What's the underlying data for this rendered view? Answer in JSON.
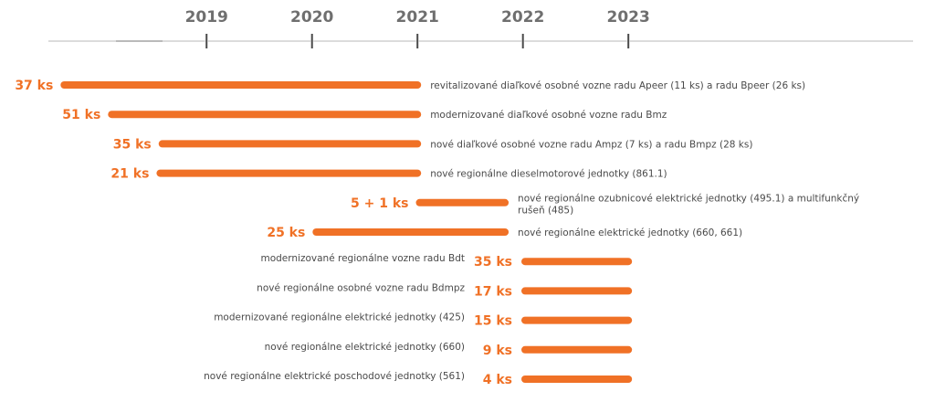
{
  "chart_data": {
    "type": "timeline",
    "accent_color": "#f07126",
    "axis_color": "#c8c8c8",
    "tick_color": "#4a4a4a",
    "years": [
      "2019",
      "2020",
      "2021",
      "2022",
      "2023"
    ],
    "xlim": [
      2017.5,
      2025.7
    ],
    "items": [
      {
        "count": "37 ks",
        "start": 2017.65,
        "end": 2021.0,
        "label_side": "right",
        "label": [
          "revitalizované diaľkové osobné vozne radu Apeer (11 ks) a radu Bpeer (26 ks)"
        ]
      },
      {
        "count": "51 ks",
        "start": 2018.1,
        "end": 2021.0,
        "label_side": "right",
        "label": [
          "modernizované diaľkové osobné vozne radu Bmz"
        ]
      },
      {
        "count": "35 ks",
        "start": 2018.58,
        "end": 2021.0,
        "label_side": "right",
        "label": [
          "nové diaľkové osobné vozne radu Ampz (7 ks) a radu Bmpz (28 ks)"
        ]
      },
      {
        "count": "21 ks",
        "start": 2018.56,
        "end": 2021.0,
        "label_side": "right",
        "label": [
          "nové regionálne dieselmotorové jednotky (861.1)"
        ]
      },
      {
        "count": "5 + 1 ks",
        "start": 2021.02,
        "end": 2021.83,
        "label_side": "right",
        "label": [
          "nové regionálne ozubnicové elektrické jednotky (495.1) a multifunkčný",
          "rušeň (485)"
        ]
      },
      {
        "count": "25 ks",
        "start": 2020.04,
        "end": 2021.83,
        "label_side": "right",
        "label": [
          "nové regionálne elektrické jednotky (660, 661)"
        ]
      },
      {
        "count": "35 ks",
        "start": 2022.02,
        "end": 2023.0,
        "label_side": "left",
        "label": [
          "modernizované regionálne vozne radu Bdt"
        ]
      },
      {
        "count": "17 ks",
        "start": 2022.02,
        "end": 2023.0,
        "label_side": "left",
        "label": [
          "nové regionálne osobné vozne radu Bdmpz"
        ]
      },
      {
        "count": "15 ks",
        "start": 2022.02,
        "end": 2023.0,
        "label_side": "left",
        "label": [
          "modernizované regionálne elektrické jednotky (425)"
        ]
      },
      {
        "count": "9 ks",
        "start": 2022.02,
        "end": 2023.0,
        "label_side": "left",
        "label": [
          "nové regionálne elektrické jednotky (660)"
        ]
      },
      {
        "count": "4 ks",
        "start": 2022.02,
        "end": 2023.0,
        "label_side": "left",
        "label": [
          "nové regionálne elektrické poschodové jednotky (561)"
        ]
      }
    ]
  }
}
